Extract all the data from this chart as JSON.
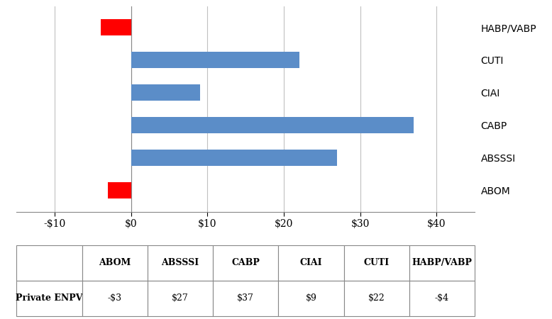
{
  "categories": [
    "ABOM",
    "ABSSSI",
    "CABP",
    "CIAI",
    "CUTI",
    "HABP/VABP"
  ],
  "values": [
    -3,
    27,
    37,
    9,
    22,
    -4
  ],
  "bar_colors": [
    "#FF0000",
    "#5B8DC8",
    "#5B8DC8",
    "#5B8DC8",
    "#5B8DC8",
    "#FF0000"
  ],
  "xlim": [
    -15,
    45
  ],
  "xticks": [
    -10,
    0,
    10,
    20,
    30,
    40
  ],
  "xtick_labels": [
    "-$10",
    "$0",
    "$10",
    "$20",
    "$30",
    "$40"
  ],
  "table_headers": [
    "ABOM",
    "ABSSSI",
    "CABP",
    "CIAI",
    "CUTI",
    "HABP/VABP"
  ],
  "table_row_label": "Private ENPV",
  "table_values": [
    "-$3",
    "$27",
    "$37",
    "$9",
    "$22",
    "-$4"
  ],
  "bar_height": 0.5,
  "grid_color": "#C0C0C0",
  "background_color": "#FFFFFF",
  "blue_color": "#5B8DC8",
  "red_color": "#FF0000"
}
